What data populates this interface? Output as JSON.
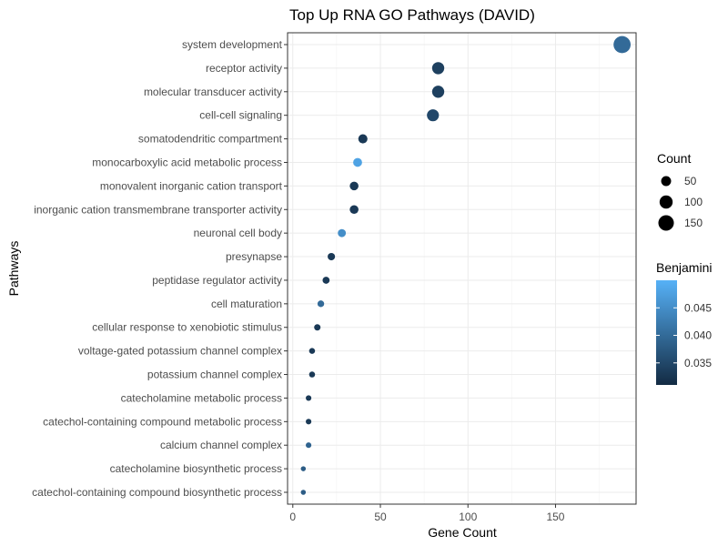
{
  "chart_data": {
    "type": "scatter",
    "title": "Top Up RNA GO Pathways (DAVID)",
    "xlabel": "Gene Count",
    "ylabel": "Pathways",
    "xlim": [
      -3,
      196
    ],
    "x_ticks": [
      0,
      50,
      100,
      150
    ],
    "grid": true,
    "categories": [
      "system development",
      "receptor activity",
      "molecular transducer activity",
      "cell-cell signaling",
      "somatodendritic compartment",
      "monocarboxylic acid metabolic process",
      "monovalent inorganic cation transport",
      "inorganic cation transmembrane transporter activity",
      "neuronal cell body",
      "presynapse",
      "peptidase regulator activity",
      "cell maturation",
      "cellular response to xenobiotic stimulus",
      "voltage-gated potassium channel complex",
      "potassium channel complex",
      "catecholamine metabolic process",
      "catechol-containing compound metabolic process",
      "calcium channel complex",
      "catecholamine biosynthetic process",
      "catechol-containing compound biosynthetic process"
    ],
    "points": [
      {
        "pathway": "system development",
        "count": 188,
        "benjamini": 0.04
      },
      {
        "pathway": "receptor activity",
        "count": 83,
        "benjamini": 0.034
      },
      {
        "pathway": "molecular transducer activity",
        "count": 83,
        "benjamini": 0.034
      },
      {
        "pathway": "cell-cell signaling",
        "count": 80,
        "benjamini": 0.035
      },
      {
        "pathway": "somatodendritic compartment",
        "count": 40,
        "benjamini": 0.033
      },
      {
        "pathway": "monocarboxylic acid metabolic process",
        "count": 37,
        "benjamini": 0.048
      },
      {
        "pathway": "monovalent inorganic cation transport",
        "count": 35,
        "benjamini": 0.033
      },
      {
        "pathway": "inorganic cation transmembrane transporter activity",
        "count": 35,
        "benjamini": 0.033
      },
      {
        "pathway": "neuronal cell body",
        "count": 28,
        "benjamini": 0.045
      },
      {
        "pathway": "presynapse",
        "count": 22,
        "benjamini": 0.033
      },
      {
        "pathway": "peptidase regulator activity",
        "count": 19,
        "benjamini": 0.033
      },
      {
        "pathway": "cell maturation",
        "count": 16,
        "benjamini": 0.04
      },
      {
        "pathway": "cellular response to xenobiotic stimulus",
        "count": 14,
        "benjamini": 0.033
      },
      {
        "pathway": "voltage-gated potassium channel complex",
        "count": 11,
        "benjamini": 0.033
      },
      {
        "pathway": "potassium channel complex",
        "count": 11,
        "benjamini": 0.033
      },
      {
        "pathway": "catecholamine metabolic process",
        "count": 9,
        "benjamini": 0.033
      },
      {
        "pathway": "catechol-containing compound metabolic process",
        "count": 9,
        "benjamini": 0.033
      },
      {
        "pathway": "calcium channel complex",
        "count": 9,
        "benjamini": 0.039
      },
      {
        "pathway": "catecholamine biosynthetic process",
        "count": 6,
        "benjamini": 0.038
      },
      {
        "pathway": "catechol-containing compound biosynthetic process",
        "count": 6,
        "benjamini": 0.038
      }
    ],
    "size_legend": {
      "title": "Count",
      "values": [
        50,
        100,
        150
      ],
      "labels": [
        "50",
        "100",
        "150"
      ]
    },
    "color_legend": {
      "title": "Benjamini",
      "range": [
        0.031,
        0.05
      ],
      "ticks": [
        0.035,
        0.04,
        0.045
      ],
      "tick_labels": [
        "0.035",
        "0.040",
        "0.045"
      ],
      "low_color": "#132B43",
      "high_color": "#56B1F7"
    }
  }
}
